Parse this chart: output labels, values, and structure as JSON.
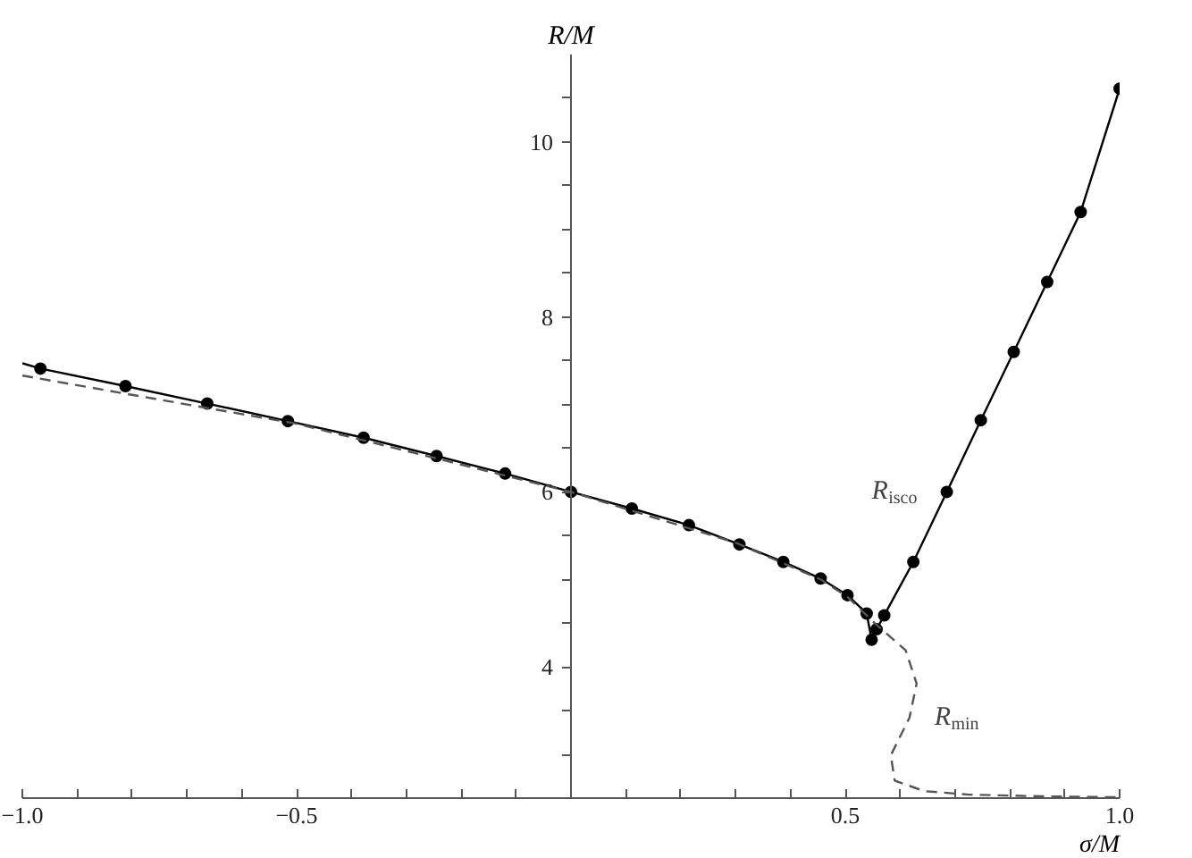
{
  "chart_data": {
    "type": "line",
    "xlabel": "σ/M",
    "ylabel": "R/M",
    "xlim": [
      -1.0,
      1.0
    ],
    "ylim": [
      2.5,
      11
    ],
    "xticks": [
      {
        "value": -1.0,
        "label": "−1.0"
      },
      {
        "value": -0.9,
        "label": null
      },
      {
        "value": -0.8,
        "label": null
      },
      {
        "value": -0.7,
        "label": null
      },
      {
        "value": -0.6,
        "label": null
      },
      {
        "value": -0.5,
        "label": "−0.5"
      },
      {
        "value": -0.4,
        "label": null
      },
      {
        "value": -0.3,
        "label": null
      },
      {
        "value": -0.2,
        "label": null
      },
      {
        "value": -0.1,
        "label": null
      },
      {
        "value": 0.1,
        "label": null
      },
      {
        "value": 0.2,
        "label": null
      },
      {
        "value": 0.3,
        "label": null
      },
      {
        "value": 0.4,
        "label": null
      },
      {
        "value": 0.5,
        "label": "0.5"
      },
      {
        "value": 0.6,
        "label": null
      },
      {
        "value": 0.7,
        "label": null
      },
      {
        "value": 0.8,
        "label": null
      },
      {
        "value": 0.9,
        "label": null
      },
      {
        "value": 1.0,
        "label": "1.0"
      }
    ],
    "yticks": [
      {
        "value": 3,
        "label": null
      },
      {
        "value": 3.5,
        "label": null
      },
      4,
      {
        "value": 4.5,
        "label": null
      },
      {
        "value": 5,
        "label": null
      },
      {
        "value": 5.5,
        "label": null
      },
      6,
      {
        "value": 6.5,
        "label": null
      },
      {
        "value": 7,
        "label": null
      },
      {
        "value": 7.5,
        "label": null
      },
      8,
      {
        "value": 8.5,
        "label": null
      },
      {
        "value": 9,
        "label": null
      },
      {
        "value": 9.5,
        "label": null
      },
      10,
      {
        "value": 10.5,
        "label": null
      }
    ],
    "grid": false,
    "series": [
      {
        "name": "R$_{isco}$",
        "color": "#000000",
        "line_style": "solid",
        "x": [
          -1.0,
          -0.967,
          -0.812,
          -0.663,
          -0.516,
          -0.378,
          -0.245,
          -0.12,
          0.0,
          0.111,
          0.215,
          0.307,
          0.387,
          0.455,
          0.504,
          0.539,
          0.548,
          0.557,
          0.571,
          0.624,
          0.685,
          0.747,
          0.807,
          0.868,
          0.929,
          1.0
        ],
        "values": [
          7.47,
          7.41,
          7.21,
          7.01,
          6.81,
          6.62,
          6.41,
          6.21,
          6.0,
          5.81,
          5.62,
          5.4,
          5.2,
          5.01,
          4.82,
          4.61,
          4.31,
          4.43,
          4.59,
          5.2,
          6.0,
          6.82,
          7.6,
          8.4,
          9.2,
          10.61
        ]
      },
      {
        "type": "scatter",
        "color": "#000000",
        "marker": "circle",
        "x": [
          -0.967,
          -0.812,
          -0.663,
          -0.516,
          -0.378,
          -0.245,
          -0.12,
          0.0,
          0.111,
          0.215,
          0.307,
          0.387,
          0.455,
          0.504,
          0.539,
          0.548,
          0.557,
          0.571,
          0.624,
          0.685,
          0.747,
          0.807,
          0.868,
          0.929,
          1.0
        ],
        "values": [
          7.41,
          7.21,
          7.01,
          6.81,
          6.62,
          6.41,
          6.21,
          6.0,
          5.81,
          5.62,
          5.4,
          5.2,
          5.01,
          4.82,
          4.61,
          4.31,
          4.43,
          4.59,
          5.2,
          6.0,
          6.82,
          7.6,
          8.4,
          9.2,
          10.61
        ]
      },
      {
        "name": "R$_{min}$",
        "color": "#555555",
        "line_style": "dashed",
        "x": [
          -1.0,
          -0.5,
          0.0,
          0.3,
          0.455,
          0.504,
          0.557,
          0.61,
          0.63,
          0.617,
          0.583,
          0.59,
          0.644,
          0.726,
          0.861,
          1.0
        ],
        "values": [
          7.33,
          6.78,
          6.0,
          5.42,
          5.0,
          4.8,
          4.48,
          4.19,
          3.81,
          3.42,
          2.99,
          2.7,
          2.58,
          2.54,
          2.52,
          2.51
        ]
      }
    ]
  }
}
